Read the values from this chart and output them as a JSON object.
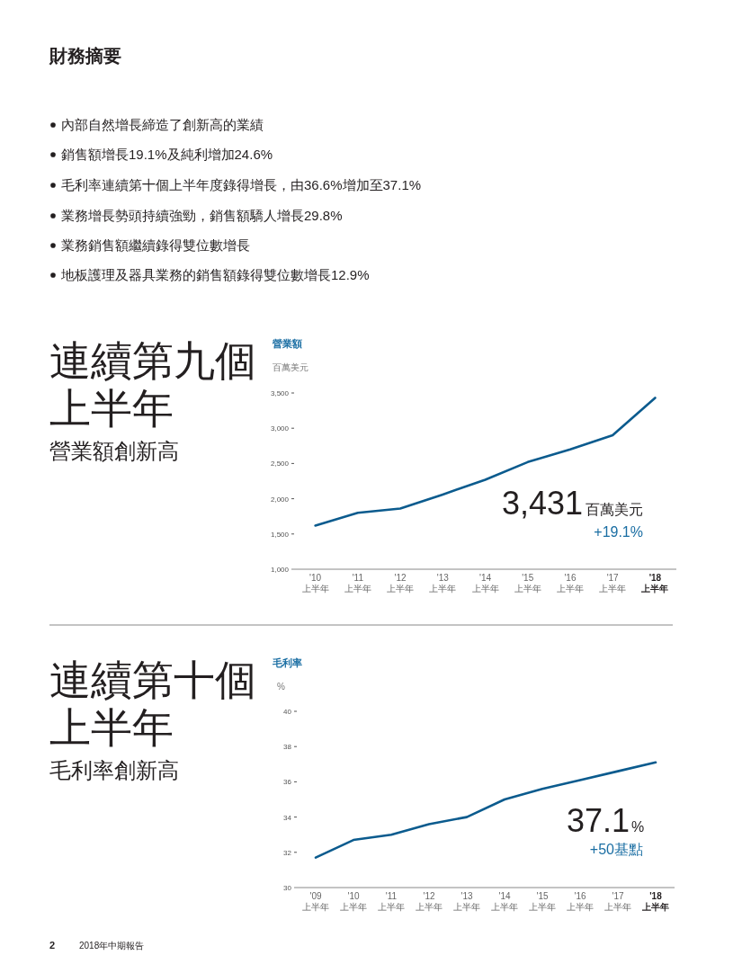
{
  "chart_data": [
    {
      "type": "line",
      "title": "營業額",
      "ylabel": "百萬美元",
      "categories": [
        "'10\n上半年",
        "'11\n上半年",
        "'12\n上半年",
        "'13\n上半年",
        "'14\n上半年",
        "'15\n上半年",
        "'16\n上半年",
        "'17\n上半年",
        "'18\n上半年"
      ],
      "series": [
        {
          "color": "#0b5b8e",
          "values": [
            1620,
            1800,
            1860,
            2060,
            2270,
            2520,
            2700,
            2900,
            3431
          ]
        }
      ],
      "ylim": [
        1000,
        3500
      ],
      "yticks": [
        {
          "value": 1000,
          "label": "1,000"
        },
        {
          "value": 1500,
          "label": "1,500"
        },
        {
          "value": 2000,
          "label": "2,000"
        },
        {
          "value": 2500,
          "label": "2,500"
        },
        {
          "value": 3000,
          "label": "3,000"
        },
        {
          "value": 3500,
          "label": "3,500"
        }
      ],
      "grid": false,
      "marker": "none",
      "line_style": "solid",
      "annotations": [
        "財務摘要",
        "內部自然增長締造了創新高的業績",
        "銷售額增長19.1%及純利增加24.6%",
        "毛利率連續第十個上半年度錄得增長，由36.6%增加至37.1%",
        "業務增長勢頭持續強勁，銷售額驕人增長29.8%",
        "業務銷售額繼續錄得雙位數增長",
        "地板護理及器具業務的銷售額錄得雙位數增長12.9%",
        "連續第九個",
        "上半年",
        "營業額創新高",
        "3,431",
        "百萬美元",
        "+19.1%"
      ]
    },
    {
      "type": "line",
      "title": "毛利率",
      "ylabel": "%",
      "categories": [
        "'09\n上半年",
        "'10\n上半年",
        "'11\n上半年",
        "'12\n上半年",
        "'13\n上半年",
        "'14\n上半年",
        "'15\n上半年",
        "'16\n上半年",
        "'17\n上半年",
        "'18\n上半年"
      ],
      "series": [
        {
          "color": "#0b5b8e",
          "values": [
            31.7,
            32.7,
            33.0,
            33.6,
            34.0,
            35.0,
            35.6,
            36.1,
            36.6,
            37.1
          ]
        }
      ],
      "ylim": [
        30,
        40
      ],
      "yticks": [
        30,
        32,
        34,
        36,
        38,
        40
      ],
      "grid": false,
      "marker": "none",
      "line_style": "solid",
      "annotations": [
        "連續第十個",
        "上半年",
        "毛利率創新高",
        "37.1",
        "%",
        "+50基點",
        "2",
        "2018年中期報告"
      ]
    }
  ]
}
